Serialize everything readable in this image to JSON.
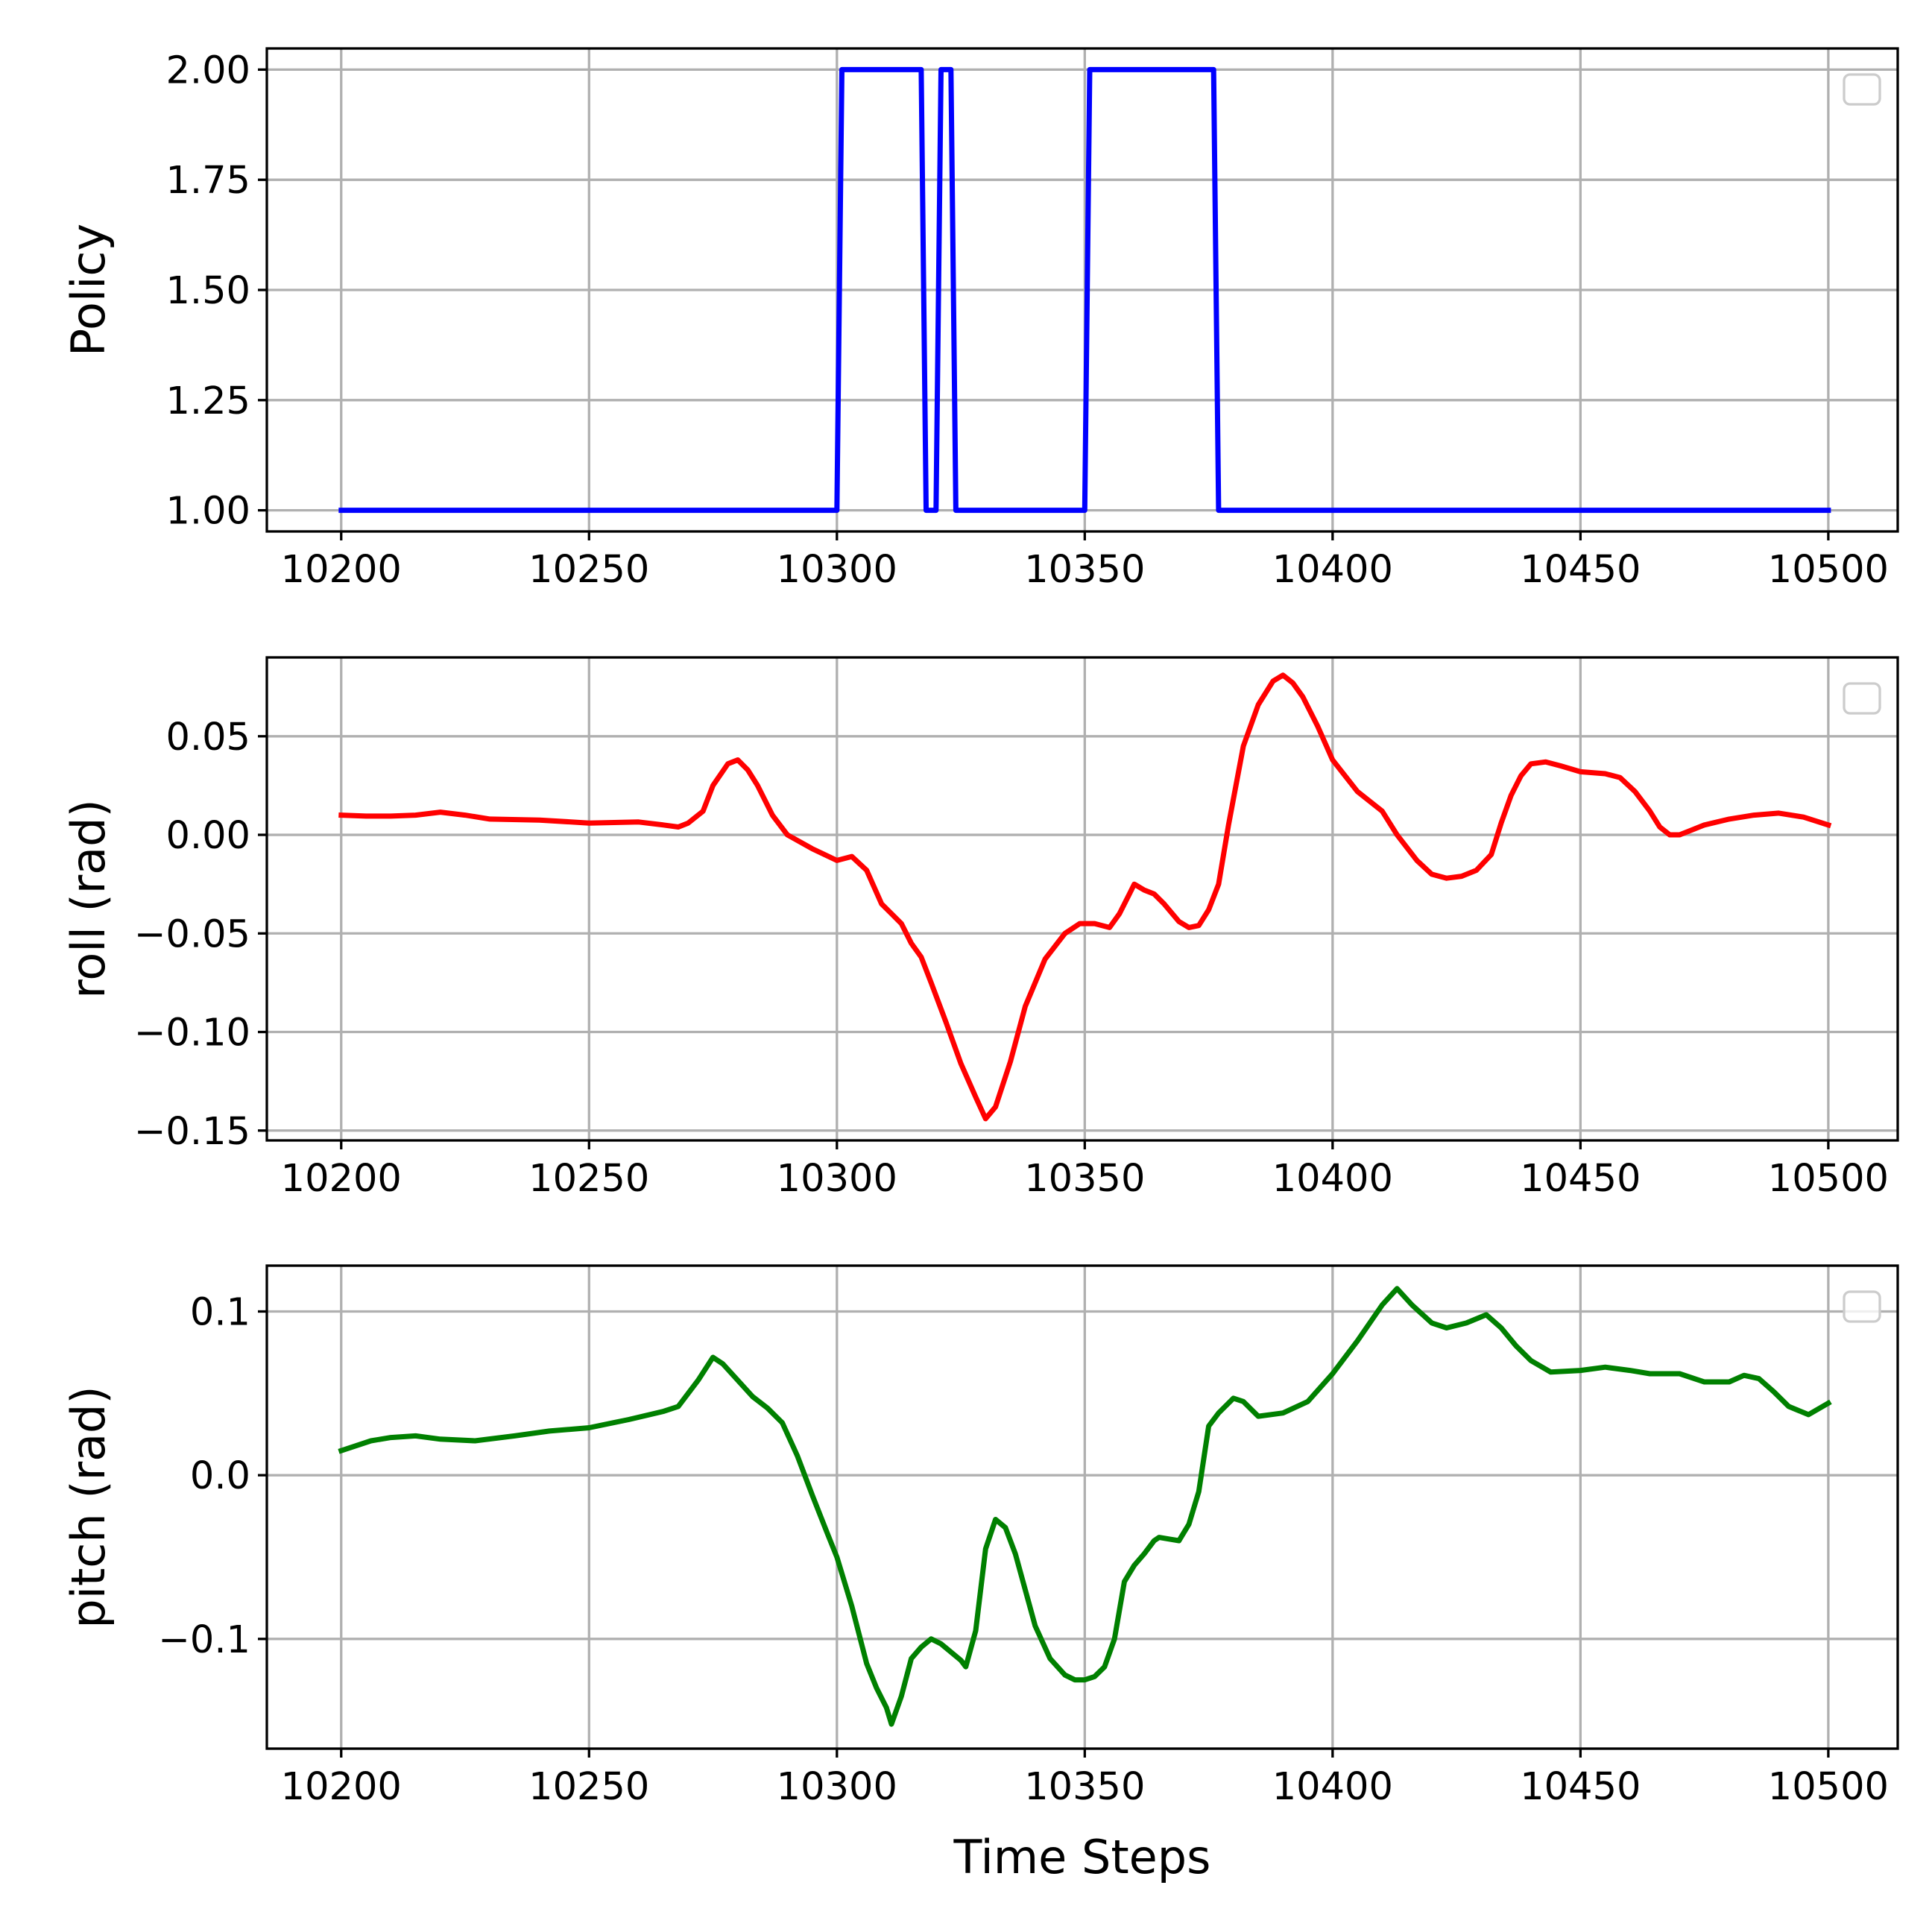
{
  "chart_data": [
    {
      "type": "line",
      "title": "",
      "xlabel": "",
      "ylabel": "Policy",
      "xlim": [
        10185,
        10514
      ],
      "ylim": [
        0.952,
        2.048
      ],
      "xticks": [
        10200,
        10250,
        10300,
        10350,
        10400,
        10450,
        10500
      ],
      "xtick_labels": [
        "10200",
        "10250",
        "10300",
        "10350",
        "10400",
        "10450",
        "10500"
      ],
      "yticks": [
        1.0,
        1.25,
        1.5,
        1.75,
        2.0
      ],
      "ytick_labels": [
        "1.00",
        "1.25",
        "1.50",
        "1.75",
        "2.00"
      ],
      "grid": true,
      "legend": "top-right (empty)",
      "series": [
        {
          "color": "#0000ff",
          "x": [
            10200,
            10300,
            10301,
            10317,
            10318,
            10320,
            10321,
            10323,
            10324,
            10350,
            10351,
            10376,
            10377,
            10500
          ],
          "y": [
            1,
            1,
            2,
            2,
            1,
            1,
            2,
            2,
            1,
            1,
            2,
            2,
            1,
            1
          ]
        }
      ]
    },
    {
      "type": "line",
      "title": "",
      "xlabel": "",
      "ylabel": "roll (rad)",
      "xlim": [
        10185,
        10514
      ],
      "ylim": [
        -0.155,
        0.09
      ],
      "xticks": [
        10200,
        10250,
        10300,
        10350,
        10400,
        10450,
        10500
      ],
      "xtick_labels": [
        "10200",
        "10250",
        "10300",
        "10350",
        "10400",
        "10450",
        "10500"
      ],
      "yticks": [
        -0.15,
        -0.1,
        -0.05,
        0.0,
        0.05
      ],
      "ytick_labels": [
        "−0.15",
        "−0.10",
        "−0.05",
        "0.00",
        "0.05"
      ],
      "grid": true,
      "legend": "top-right (empty)",
      "series": [
        {
          "color": "#ff0000",
          "x": [
            10200,
            10205,
            10210,
            10215,
            10220,
            10225,
            10230,
            10240,
            10250,
            10260,
            10265,
            10268,
            10270,
            10273,
            10275,
            10278,
            10280,
            10282,
            10284,
            10287,
            10290,
            10295,
            10300,
            10303,
            10306,
            10309,
            10311,
            10313,
            10315,
            10317,
            10319,
            10322,
            10325,
            10328,
            10330,
            10332,
            10335,
            10338,
            10342,
            10346,
            10349,
            10352,
            10355,
            10357,
            10359,
            10360,
            10362,
            10364,
            10366,
            10369,
            10371,
            10373,
            10375,
            10377,
            10379,
            10382,
            10385,
            10388,
            10390,
            10392,
            10394,
            10397,
            10400,
            10405,
            10410,
            10413,
            10417,
            10420,
            10423,
            10426,
            10429,
            10432,
            10434,
            10436,
            10438,
            10440,
            10443,
            10446,
            10450,
            10455,
            10458,
            10461,
            10464,
            10466,
            10468,
            10470,
            10472,
            10475,
            10480,
            10485,
            10490,
            10495,
            10500
          ],
          "y": [
            0.01,
            0.0095,
            0.0095,
            0.01,
            0.0115,
            0.01,
            0.008,
            0.0075,
            0.006,
            0.0065,
            0.005,
            0.004,
            0.006,
            0.012,
            0.025,
            0.036,
            0.038,
            0.033,
            0.025,
            0.01,
            0.0,
            -0.007,
            -0.013,
            -0.011,
            -0.018,
            -0.035,
            -0.04,
            -0.045,
            -0.055,
            -0.062,
            -0.075,
            -0.095,
            -0.116,
            -0.133,
            -0.144,
            -0.138,
            -0.115,
            -0.087,
            -0.063,
            -0.05,
            -0.045,
            -0.045,
            -0.047,
            -0.04,
            -0.03,
            -0.025,
            -0.028,
            -0.03,
            -0.035,
            -0.044,
            -0.047,
            -0.046,
            -0.038,
            -0.025,
            0.005,
            0.045,
            0.066,
            0.078,
            0.081,
            0.077,
            0.07,
            0.055,
            0.038,
            0.022,
            0.012,
            0.0,
            -0.013,
            -0.02,
            -0.022,
            -0.021,
            -0.018,
            -0.01,
            0.006,
            0.02,
            0.03,
            0.036,
            0.037,
            0.035,
            0.032,
            0.031,
            0.029,
            0.022,
            0.012,
            0.004,
            0.0,
            0.0,
            0.002,
            0.005,
            0.008,
            0.01,
            0.011,
            0.009,
            0.005
          ]
        }
      ]
    },
    {
      "type": "line",
      "title": "",
      "xlabel": "Time Steps",
      "ylabel": "pitch (rad)",
      "xlim": [
        10185,
        10514
      ],
      "ylim": [
        -0.167,
        0.128
      ],
      "xticks": [
        10200,
        10250,
        10300,
        10350,
        10400,
        10450,
        10500
      ],
      "xtick_labels": [
        "10200",
        "10250",
        "10300",
        "10350",
        "10400",
        "10450",
        "10500"
      ],
      "yticks": [
        -0.1,
        0.0,
        0.1
      ],
      "ytick_labels": [
        "−0.1",
        "0.0",
        "0.1"
      ],
      "grid": true,
      "legend": "top-right (empty)",
      "series": [
        {
          "color": "#008000",
          "x": [
            10200,
            10206,
            10210,
            10215,
            10220,
            10227,
            10235,
            10242,
            10250,
            10258,
            10265,
            10268,
            10272,
            10275,
            10277,
            10280,
            10283,
            10286,
            10289,
            10292,
            10295,
            10298,
            10300,
            10303,
            10306,
            10308,
            10310,
            10311,
            10313,
            10315,
            10317,
            10319,
            10321,
            10323,
            10325,
            10326,
            10328,
            10330,
            10332,
            10334,
            10336,
            10338,
            10340,
            10343,
            10346,
            10348,
            10350,
            10352,
            10354,
            10356,
            10358,
            10360,
            10362,
            10364,
            10365,
            10367,
            10369,
            10371,
            10373,
            10375,
            10377,
            10380,
            10382,
            10385,
            10390,
            10395,
            10400,
            10405,
            10410,
            10413,
            10416,
            10420,
            10423,
            10427,
            10431,
            10434,
            10437,
            10440,
            10444,
            10450,
            10455,
            10460,
            10464,
            10467,
            10470,
            10475,
            10480,
            10483,
            10486,
            10489,
            10492,
            10496,
            10500
          ],
          "y": [
            0.015,
            0.021,
            0.023,
            0.024,
            0.022,
            0.021,
            0.024,
            0.027,
            0.029,
            0.034,
            0.039,
            0.042,
            0.058,
            0.072,
            0.068,
            0.058,
            0.048,
            0.041,
            0.032,
            0.012,
            -0.012,
            -0.035,
            -0.05,
            -0.08,
            -0.115,
            -0.13,
            -0.142,
            -0.152,
            -0.135,
            -0.112,
            -0.105,
            -0.1,
            -0.103,
            -0.108,
            -0.113,
            -0.117,
            -0.095,
            -0.045,
            -0.027,
            -0.032,
            -0.048,
            -0.07,
            -0.092,
            -0.112,
            -0.122,
            -0.125,
            -0.125,
            -0.123,
            -0.117,
            -0.1,
            -0.065,
            -0.055,
            -0.048,
            -0.04,
            -0.038,
            -0.039,
            -0.04,
            -0.03,
            -0.01,
            0.03,
            0.038,
            0.047,
            0.045,
            0.036,
            0.038,
            0.045,
            0.062,
            0.082,
            0.104,
            0.114,
            0.104,
            0.093,
            0.09,
            0.093,
            0.098,
            0.09,
            0.079,
            0.07,
            0.063,
            0.064,
            0.066,
            0.064,
            0.062,
            0.062,
            0.062,
            0.057,
            0.057,
            0.061,
            0.059,
            0.051,
            0.042,
            0.037,
            0.044
          ]
        }
      ]
    }
  ]
}
